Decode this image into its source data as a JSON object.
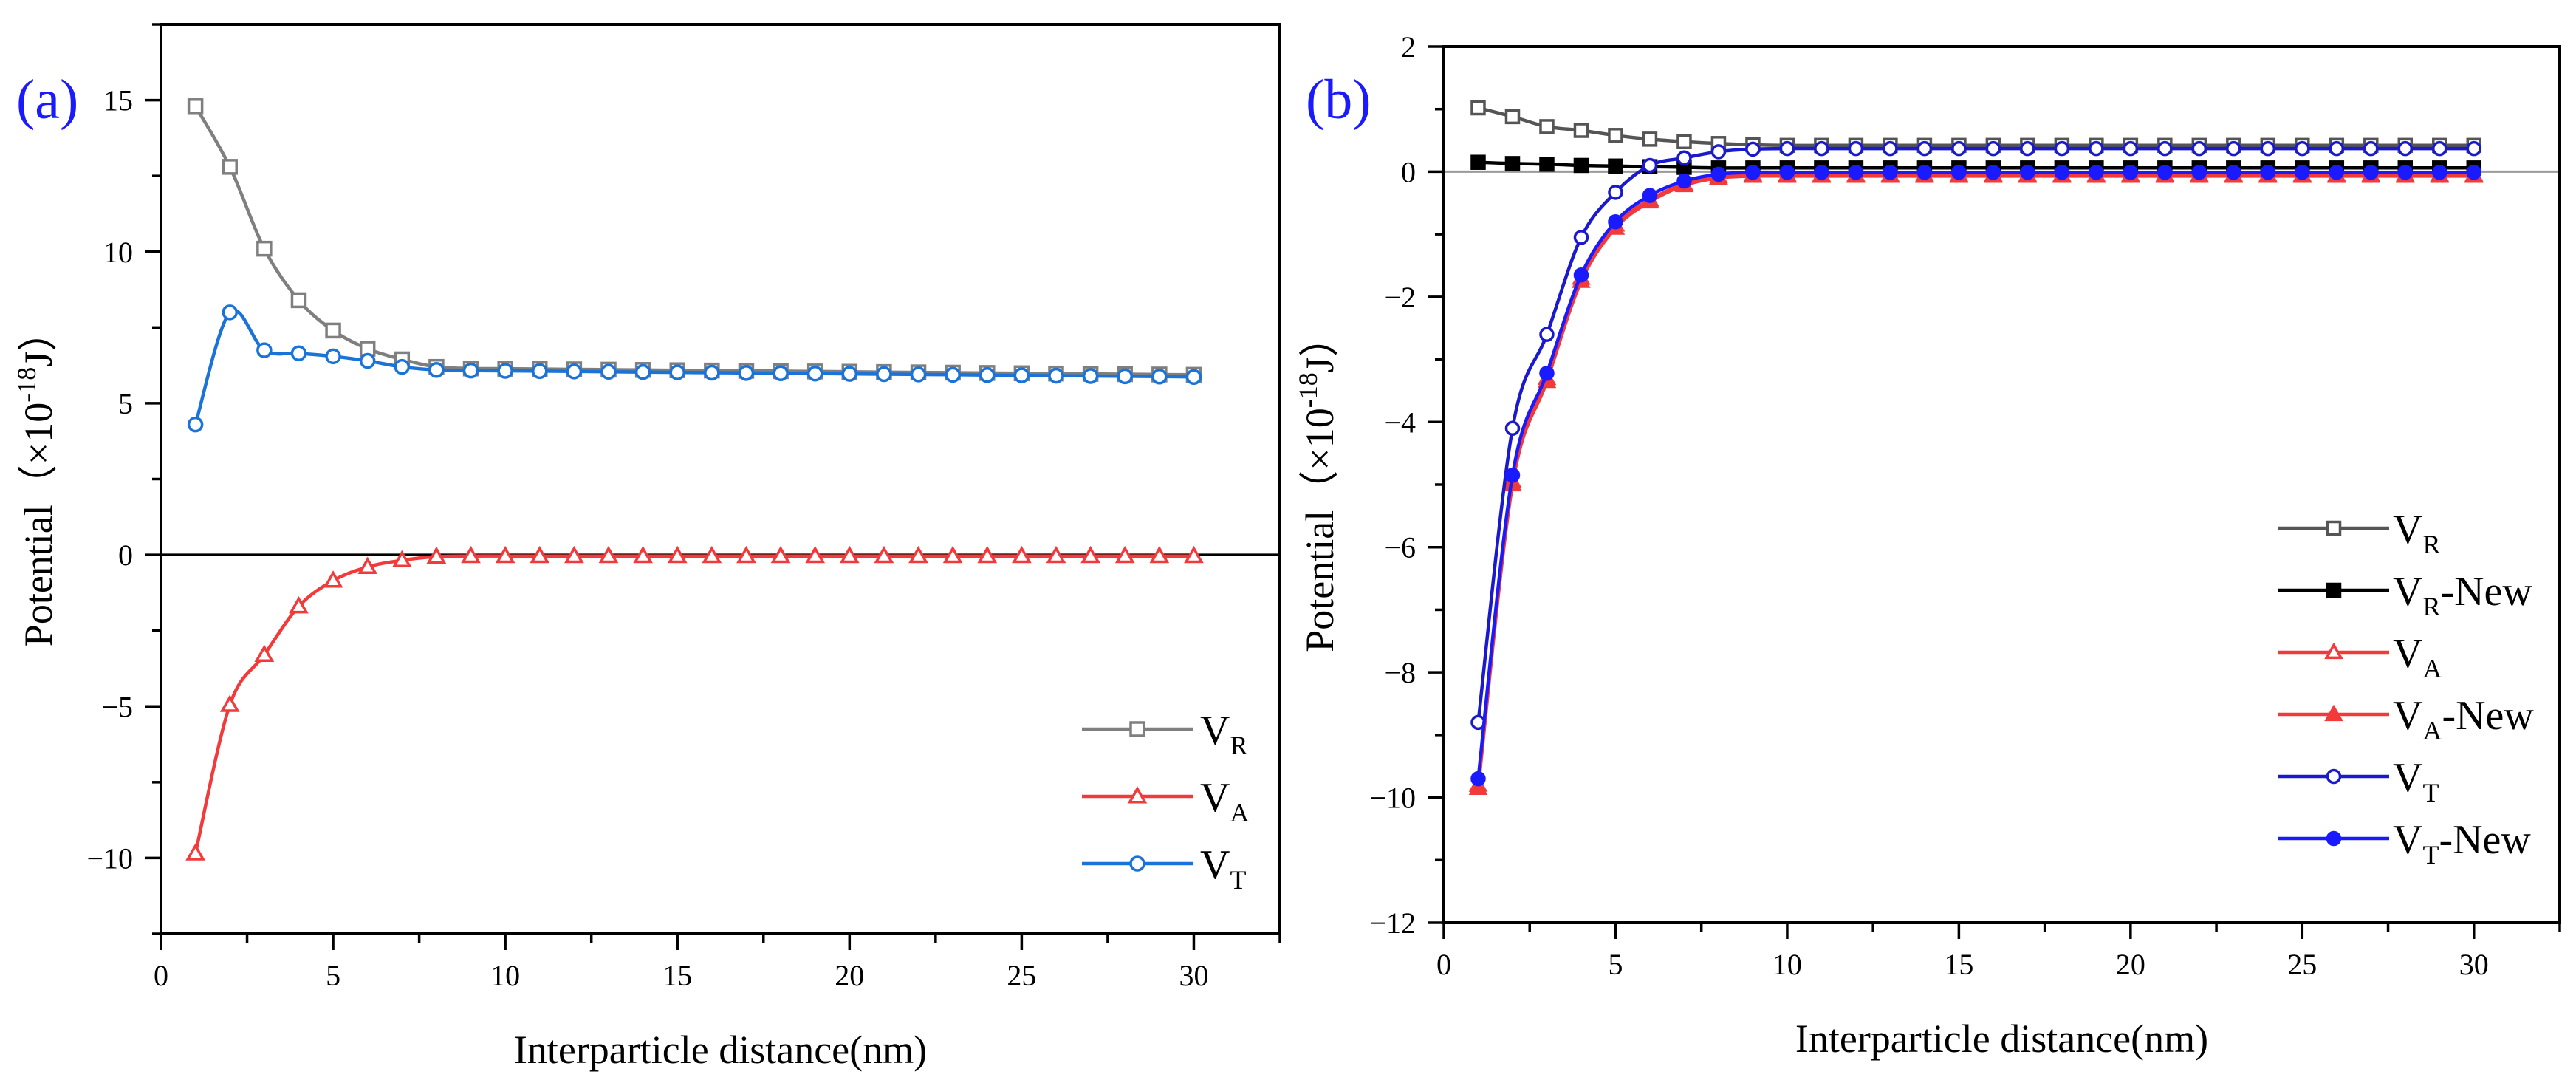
{
  "chart_data": [
    {
      "panel_label": "(a)",
      "type": "line",
      "xlabel": "Interparticle distance(nm)",
      "ylabel": "Potential（×10",
      "ylabel_sup": "-18",
      "ylabel_unit": "J）",
      "xlim": [
        0,
        32.5
      ],
      "ylim": [
        -12.5,
        17.5
      ],
      "xticks": [
        0,
        5,
        10,
        15,
        20,
        25,
        30
      ],
      "yticks": [
        -10,
        -5,
        0,
        5,
        10,
        15
      ],
      "x": [
        1,
        2,
        3,
        4,
        5,
        6,
        7,
        8,
        9,
        10,
        11,
        12,
        13,
        14,
        15,
        16,
        17,
        18,
        19,
        20,
        21,
        22,
        23,
        24,
        25,
        26,
        27,
        28,
        29,
        30
      ],
      "zero_line": true,
      "legend": "bottom-right",
      "series": [
        {
          "name": "V",
          "sub": "R",
          "color": "#7f7f7f",
          "marker": "square-open",
          "values": [
            14.8,
            12.8,
            10.1,
            8.4,
            7.4,
            6.8,
            6.45,
            6.2,
            6.15,
            6.14,
            6.13,
            6.12,
            6.11,
            6.1,
            6.09,
            6.08,
            6.07,
            6.06,
            6.05,
            6.04,
            6.03,
            6.02,
            6.01,
            6.0,
            5.99,
            5.98,
            5.97,
            5.96,
            5.95,
            5.94
          ]
        },
        {
          "name": "V",
          "sub": "A",
          "color": "#f23a3a",
          "marker": "triangle-open",
          "values": [
            -9.85,
            -4.95,
            -3.3,
            -1.7,
            -0.85,
            -0.4,
            -0.18,
            -0.06,
            -0.04,
            -0.04,
            -0.04,
            -0.04,
            -0.04,
            -0.04,
            -0.04,
            -0.04,
            -0.04,
            -0.04,
            -0.04,
            -0.04,
            -0.04,
            -0.04,
            -0.04,
            -0.04,
            -0.04,
            -0.04,
            -0.04,
            -0.04,
            -0.04,
            -0.04
          ]
        },
        {
          "name": "V",
          "sub": "T",
          "color": "#1a73d9",
          "marker": "circle-open",
          "values": [
            4.3,
            8.0,
            6.75,
            6.65,
            6.55,
            6.4,
            6.2,
            6.1,
            6.08,
            6.07,
            6.06,
            6.05,
            6.04,
            6.03,
            6.02,
            6.01,
            6.0,
            5.99,
            5.98,
            5.97,
            5.96,
            5.95,
            5.94,
            5.93,
            5.92,
            5.91,
            5.9,
            5.89,
            5.88,
            5.87
          ]
        }
      ]
    },
    {
      "panel_label": "(b)",
      "type": "line",
      "xlabel": "Interparticle distance(nm)",
      "ylabel": "Potential（×10",
      "ylabel_sup": "-18",
      "ylabel_unit": "J）",
      "xlim": [
        0,
        32.5
      ],
      "ylim": [
        -12,
        2
      ],
      "xticks": [
        0,
        5,
        10,
        15,
        20,
        25,
        30
      ],
      "yticks": [
        -12,
        -10,
        -8,
        -6,
        -4,
        -2,
        0,
        2
      ],
      "x": [
        1,
        2,
        3,
        4,
        5,
        6,
        7,
        8,
        9,
        10,
        11,
        12,
        13,
        14,
        15,
        16,
        17,
        18,
        19,
        20,
        21,
        22,
        23,
        24,
        25,
        26,
        27,
        28,
        29,
        30
      ],
      "zero_line": true,
      "legend": "bottom-right",
      "series": [
        {
          "name": "V",
          "sub": "R",
          "suffix": "",
          "color": "#555555",
          "marker": "square-open",
          "values": [
            1.02,
            0.88,
            0.72,
            0.66,
            0.58,
            0.52,
            0.48,
            0.45,
            0.43,
            0.42,
            0.42,
            0.42,
            0.42,
            0.42,
            0.42,
            0.42,
            0.42,
            0.42,
            0.42,
            0.42,
            0.42,
            0.42,
            0.42,
            0.42,
            0.42,
            0.42,
            0.42,
            0.42,
            0.42,
            0.42
          ]
        },
        {
          "name": "V",
          "sub": "R",
          "suffix": "-New",
          "color": "#000000",
          "marker": "square-filled",
          "values": [
            0.15,
            0.13,
            0.12,
            0.1,
            0.09,
            0.08,
            0.07,
            0.06,
            0.06,
            0.06,
            0.06,
            0.06,
            0.06,
            0.06,
            0.06,
            0.06,
            0.06,
            0.06,
            0.06,
            0.06,
            0.06,
            0.06,
            0.06,
            0.06,
            0.06,
            0.06,
            0.06,
            0.06,
            0.06,
            0.06
          ]
        },
        {
          "name": "V",
          "sub": "A",
          "suffix": "",
          "color": "#f23a3a",
          "marker": "triangle-open",
          "values": [
            -9.8,
            -4.95,
            -3.3,
            -1.7,
            -0.85,
            -0.45,
            -0.2,
            -0.08,
            -0.05,
            -0.05,
            -0.05,
            -0.05,
            -0.05,
            -0.05,
            -0.05,
            -0.05,
            -0.05,
            -0.05,
            -0.05,
            -0.05,
            -0.05,
            -0.05,
            -0.05,
            -0.05,
            -0.05,
            -0.05,
            -0.05,
            -0.05,
            -0.05,
            -0.05
          ]
        },
        {
          "name": "V",
          "sub": "A",
          "suffix": "-New",
          "color": "#f23a3a",
          "marker": "triangle-filled",
          "values": [
            -9.85,
            -5.0,
            -3.35,
            -1.75,
            -0.9,
            -0.48,
            -0.22,
            -0.1,
            -0.07,
            -0.07,
            -0.07,
            -0.07,
            -0.07,
            -0.07,
            -0.07,
            -0.07,
            -0.07,
            -0.07,
            -0.07,
            -0.07,
            -0.07,
            -0.07,
            -0.07,
            -0.07,
            -0.07,
            -0.07,
            -0.07,
            -0.07,
            -0.07,
            -0.07
          ]
        },
        {
          "name": "V",
          "sub": "T",
          "suffix": "",
          "color": "#1a1acc",
          "marker": "circle-open",
          "values": [
            -8.8,
            -4.1,
            -2.6,
            -1.05,
            -0.33,
            0.1,
            0.22,
            0.32,
            0.36,
            0.37,
            0.37,
            0.37,
            0.37,
            0.37,
            0.37,
            0.37,
            0.37,
            0.37,
            0.37,
            0.37,
            0.37,
            0.37,
            0.37,
            0.37,
            0.37,
            0.37,
            0.37,
            0.37,
            0.37,
            0.37
          ]
        },
        {
          "name": "V",
          "sub": "T",
          "suffix": "-New",
          "color": "#1a1aff",
          "marker": "circle-filled",
          "values": [
            -9.7,
            -4.85,
            -3.22,
            -1.65,
            -0.8,
            -0.38,
            -0.15,
            -0.04,
            -0.01,
            -0.01,
            -0.01,
            -0.01,
            -0.01,
            -0.01,
            -0.01,
            -0.01,
            -0.01,
            -0.01,
            -0.01,
            -0.01,
            -0.01,
            -0.01,
            -0.01,
            -0.01,
            -0.01,
            -0.01,
            -0.01,
            -0.01,
            -0.01,
            -0.01
          ]
        }
      ]
    }
  ]
}
